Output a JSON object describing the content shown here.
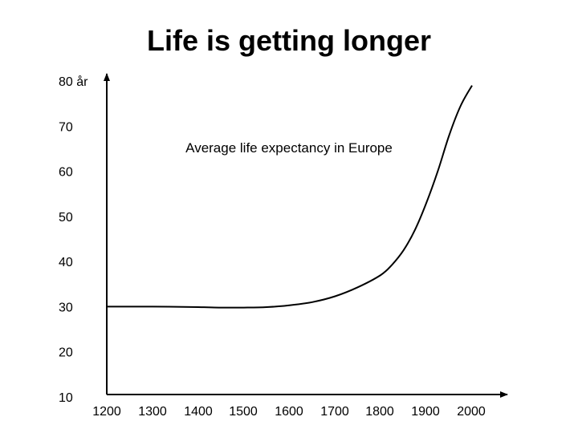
{
  "chart_data": {
    "type": "line",
    "title": "Life is getting longer",
    "annotation": "Average life expectancy in Europe",
    "xlabel": "",
    "ylabel": "",
    "xlim": [
      1200,
      2000
    ],
    "ylim": [
      10,
      80
    ],
    "x_ticks": [
      1200,
      1300,
      1400,
      1500,
      1600,
      1700,
      1800,
      1900,
      2000
    ],
    "y_ticks": [
      {
        "value": 80,
        "label": "80 år"
      },
      {
        "value": 70,
        "label": "70"
      },
      {
        "value": 60,
        "label": "60"
      },
      {
        "value": 50,
        "label": "50"
      },
      {
        "value": 40,
        "label": "40"
      },
      {
        "value": 30,
        "label": "30"
      },
      {
        "value": 20,
        "label": "20"
      },
      {
        "value": 10,
        "label": "10"
      }
    ],
    "grid": false,
    "series": [
      {
        "x": [
          1200,
          1300,
          1400,
          1450,
          1500,
          1550,
          1600,
          1650,
          1700,
          1750,
          1800,
          1825,
          1850,
          1875,
          1900,
          1925,
          1950,
          1975,
          2000
        ],
        "y": [
          30,
          30,
          29.9,
          29.8,
          29.8,
          29.9,
          30.3,
          31.0,
          32.3,
          34.3,
          37.0,
          39.3,
          42.5,
          47.0,
          53.0,
          60.0,
          68.0,
          74.5,
          79.0
        ],
        "color": "#000000"
      }
    ]
  }
}
